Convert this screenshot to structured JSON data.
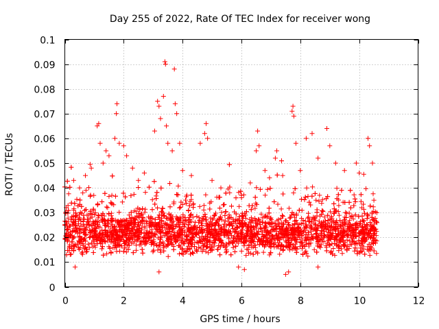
{
  "chart_data": {
    "type": "scatter",
    "title": "Day 255 of 2022, Rate Of TEC Index for receiver wong",
    "xlabel": "GPS time / hours",
    "ylabel": "ROTI / TECUs",
    "xlim": [
      0,
      12
    ],
    "ylim": [
      0,
      0.1
    ],
    "xticks": [
      0,
      2,
      4,
      6,
      8,
      10,
      12
    ],
    "xtick_labels": [
      "0",
      "2",
      "4",
      "6",
      "8",
      "10",
      "12"
    ],
    "yticks": [
      0,
      0.01,
      0.02,
      0.03,
      0.04,
      0.05,
      0.06,
      0.07,
      0.08,
      0.09,
      0.1
    ],
    "ytick_labels": [
      "0",
      "0.01",
      "0.02",
      "0.03",
      "0.04",
      "0.05",
      "0.06",
      "0.07",
      "0.08",
      "0.09",
      "0.1"
    ],
    "grid": true,
    "marker": "+",
    "color": "#ff0000",
    "data_x_range": [
      0,
      10.6
    ],
    "core_band": [
      0.008,
      0.035
    ],
    "generated_points": 3500,
    "series": [
      {
        "name": "ROTI",
        "notable_points": [
          [
            0.05,
            0.032
          ],
          [
            0.3,
            0.043
          ],
          [
            0.3,
            0.031
          ],
          [
            0.5,
            0.04
          ],
          [
            0.7,
            0.045
          ],
          [
            0.9,
            0.048
          ],
          [
            1.1,
            0.065
          ],
          [
            1.15,
            0.066
          ],
          [
            1.2,
            0.058
          ],
          [
            1.3,
            0.05
          ],
          [
            1.4,
            0.055
          ],
          [
            1.5,
            0.053
          ],
          [
            1.7,
            0.06
          ],
          [
            1.75,
            0.07
          ],
          [
            1.77,
            0.074
          ],
          [
            1.85,
            0.058
          ],
          [
            2.0,
            0.057
          ],
          [
            2.1,
            0.053
          ],
          [
            2.3,
            0.048
          ],
          [
            2.5,
            0.043
          ],
          [
            2.7,
            0.046
          ],
          [
            3.05,
            0.063
          ],
          [
            3.15,
            0.075
          ],
          [
            3.2,
            0.073
          ],
          [
            3.25,
            0.068
          ],
          [
            3.35,
            0.077
          ],
          [
            3.4,
            0.091
          ],
          [
            3.42,
            0.09
          ],
          [
            3.45,
            0.065
          ],
          [
            3.5,
            0.058
          ],
          [
            3.65,
            0.055
          ],
          [
            3.72,
            0.088
          ],
          [
            3.75,
            0.074
          ],
          [
            3.8,
            0.07
          ],
          [
            3.9,
            0.058
          ],
          [
            4.0,
            0.047
          ],
          [
            4.3,
            0.045
          ],
          [
            4.6,
            0.058
          ],
          [
            4.75,
            0.062
          ],
          [
            4.8,
            0.066
          ],
          [
            4.85,
            0.06
          ],
          [
            5.0,
            0.043
          ],
          [
            5.3,
            0.04
          ],
          [
            5.6,
            0.038
          ],
          [
            6.0,
            0.036
          ],
          [
            6.3,
            0.042
          ],
          [
            6.5,
            0.055
          ],
          [
            6.55,
            0.063
          ],
          [
            6.6,
            0.057
          ],
          [
            6.8,
            0.047
          ],
          [
            7.15,
            0.052
          ],
          [
            7.2,
            0.055
          ],
          [
            7.4,
            0.045
          ],
          [
            7.72,
            0.071
          ],
          [
            7.75,
            0.073
          ],
          [
            7.78,
            0.069
          ],
          [
            7.85,
            0.058
          ],
          [
            8.0,
            0.047
          ],
          [
            8.2,
            0.06
          ],
          [
            8.4,
            0.062
          ],
          [
            8.6,
            0.052
          ],
          [
            8.9,
            0.064
          ],
          [
            9.0,
            0.057
          ],
          [
            9.2,
            0.05
          ],
          [
            9.5,
            0.047
          ],
          [
            9.9,
            0.05
          ],
          [
            10.0,
            0.046
          ],
          [
            10.3,
            0.06
          ],
          [
            10.35,
            0.057
          ],
          [
            10.45,
            0.05
          ],
          [
            10.5,
            0.035
          ],
          [
            10.6,
            0.03
          ],
          [
            7.5,
            0.005
          ],
          [
            7.6,
            0.006
          ],
          [
            3.2,
            0.006
          ],
          [
            5.9,
            0.008
          ],
          [
            6.1,
            0.007
          ],
          [
            0.35,
            0.008
          ],
          [
            8.6,
            0.008
          ]
        ]
      }
    ]
  }
}
